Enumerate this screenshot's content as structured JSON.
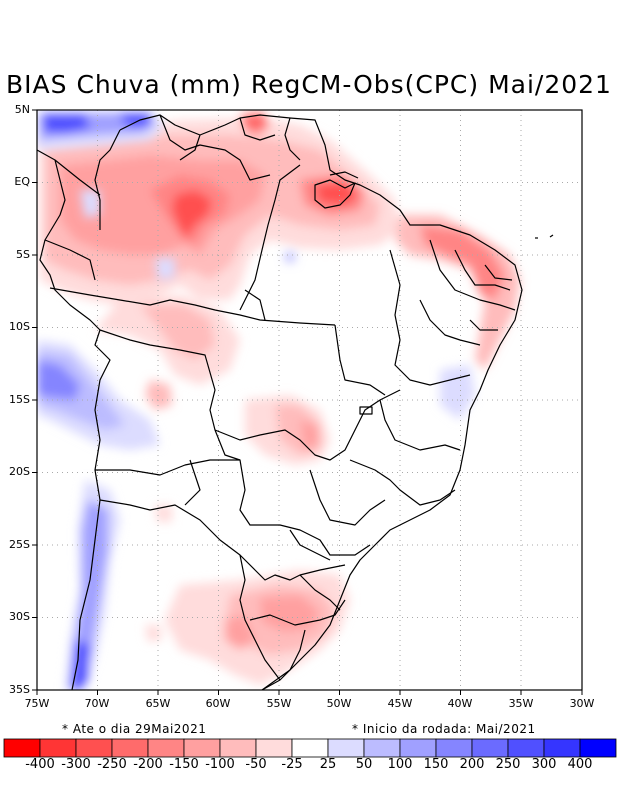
{
  "title": "BIAS Chuva (mm) RegCM-Obs(CPC) Mai/2021",
  "map": {
    "lat_ticks": [
      "5N",
      "EQ",
      "5S",
      "10S",
      "15S",
      "20S",
      "25S",
      "30S",
      "35S"
    ],
    "lon_ticks": [
      "75W",
      "70W",
      "65W",
      "60W",
      "55W",
      "50W",
      "45W",
      "40W",
      "35W",
      "30W"
    ],
    "lat_range": [
      5,
      -35
    ],
    "lon_range": [
      -75,
      -30
    ]
  },
  "notes": {
    "left": "* Ate o dia 29Mai2021",
    "right": "* Inicio da rodada: Mai/2021"
  },
  "colorbar": {
    "colors": [
      "#ff0000",
      "#ff3535",
      "#ff5050",
      "#ff6b6b",
      "#ff8585",
      "#ffa0a0",
      "#ffbcbc",
      "#ffdcdc",
      "#ffffff",
      "#dcdcff",
      "#bcbcff",
      "#a0a0ff",
      "#8585ff",
      "#6b6bff",
      "#5050ff",
      "#3535ff",
      "#0000ff"
    ],
    "labels": [
      "-400",
      "-300",
      "-250",
      "-200",
      "-150",
      "-100",
      "-50",
      "-25",
      "25",
      "50",
      "100",
      "150",
      "200",
      "250",
      "300",
      "400"
    ]
  }
}
